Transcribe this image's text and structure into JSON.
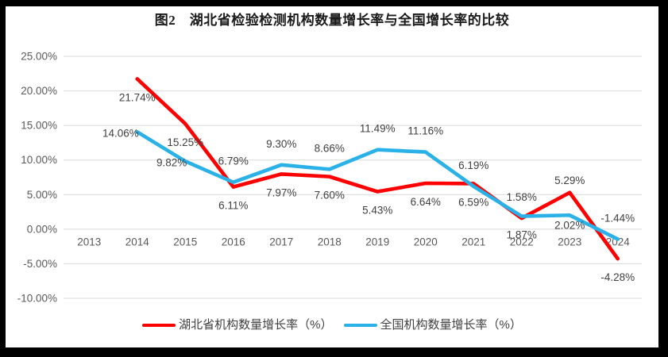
{
  "title": "图2　湖北省检验检测机构数量增长率与全国增长率的比较",
  "chart_data": {
    "type": "line",
    "categories": [
      "2013",
      "2014",
      "2015",
      "2016",
      "2017",
      "2018",
      "2019",
      "2020",
      "2021",
      "2022",
      "2023",
      "2024"
    ],
    "ylim": [
      -10,
      25
    ],
    "y_ticks": [
      {
        "value": 25,
        "label": "25.00%"
      },
      {
        "value": 20,
        "label": "20.00%"
      },
      {
        "value": 15,
        "label": "15.00%"
      },
      {
        "value": 10,
        "label": "10.00%"
      },
      {
        "value": 5,
        "label": "5.00%"
      },
      {
        "value": 0,
        "label": "0.00%"
      },
      {
        "value": -5,
        "label": "-5.00%"
      },
      {
        "value": -10,
        "label": "-10.00%"
      }
    ],
    "grid": true,
    "legend_position": "bottom",
    "grid_color": "#D9D9D9",
    "series": [
      {
        "name": "湖北省机构数量增长率（%）",
        "color": "#FE0000",
        "values": [
          null,
          21.74,
          15.25,
          6.11,
          7.97,
          7.6,
          5.43,
          6.64,
          6.59,
          1.58,
          5.29,
          -4.28
        ],
        "labels": [
          null,
          "21.74%",
          "15.25%",
          "6.11%",
          "7.97%",
          "7.60%",
          "5.43%",
          "6.64%",
          "6.59%",
          "1.58%",
          "5.29%",
          "-4.28%"
        ],
        "label_pos": [
          null,
          "below",
          "below",
          "below",
          "below",
          "below",
          "below",
          "below",
          "below",
          "above",
          "above-near",
          "below"
        ]
      },
      {
        "name": "全国机构数量增长率（%）",
        "color": "#29B1E8",
        "values": [
          null,
          14.06,
          9.82,
          6.79,
          9.3,
          8.66,
          11.49,
          11.16,
          6.19,
          1.87,
          2.02,
          -1.44
        ],
        "labels": [
          null,
          "14.06%",
          "9.82%",
          "6.79%",
          "9.30%",
          "8.66%",
          "11.49%",
          "11.16%",
          "6.19%",
          "1.87%",
          "2.02%",
          "-1.44%"
        ],
        "label_pos": [
          null,
          "left",
          "left",
          "above",
          "above",
          "above",
          "above",
          "above",
          "above",
          "below",
          "below-near",
          "above"
        ]
      }
    ]
  }
}
